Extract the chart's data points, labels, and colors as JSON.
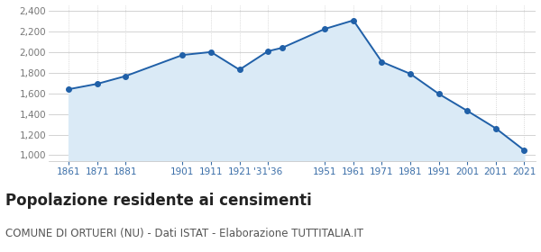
{
  "years": [
    1861,
    1871,
    1881,
    1901,
    1911,
    1921,
    1931,
    1936,
    1951,
    1961,
    1971,
    1981,
    1991,
    2001,
    2011,
    2021
  ],
  "population": [
    1641,
    1693,
    1769,
    1974,
    2003,
    1831,
    2011,
    2044,
    2228,
    2311,
    1907,
    1791,
    1596,
    1431,
    1261,
    1047
  ],
  "line_color": "#2060a8",
  "fill_color": "#daeaf6",
  "marker_color": "#2060a8",
  "background_color": "#ffffff",
  "grid_color": "#cccccc",
  "yticks": [
    1000,
    1200,
    1400,
    1600,
    1800,
    2000,
    2200,
    2400
  ],
  "ylim": [
    940,
    2460
  ],
  "xlim": [
    1854,
    2025
  ],
  "x_tick_positions": [
    1861,
    1871,
    1881,
    1901,
    1911,
    1921,
    1931,
    1951,
    1961,
    1971,
    1981,
    1991,
    2001,
    2011,
    2021
  ],
  "x_tick_labels": [
    "1861",
    "1871",
    "1881",
    "1901",
    "1911",
    "1921",
    "'31'36",
    "1951",
    "1961",
    "1971",
    "1981",
    "1991",
    "2001",
    "2011",
    "2021"
  ],
  "title": "Popolazione residente ai censimenti",
  "subtitle": "COMUNE DI ORTUERI (NU) - Dati ISTAT - Elaborazione TUTTITALIA.IT",
  "title_fontsize": 12,
  "subtitle_fontsize": 8.5,
  "title_color": "#222222",
  "subtitle_color": "#555555",
  "tick_label_color": "#3a6ea8",
  "ytick_label_color": "#777777",
  "ytick_fontsize": 7.5,
  "xtick_fontsize": 7.5
}
